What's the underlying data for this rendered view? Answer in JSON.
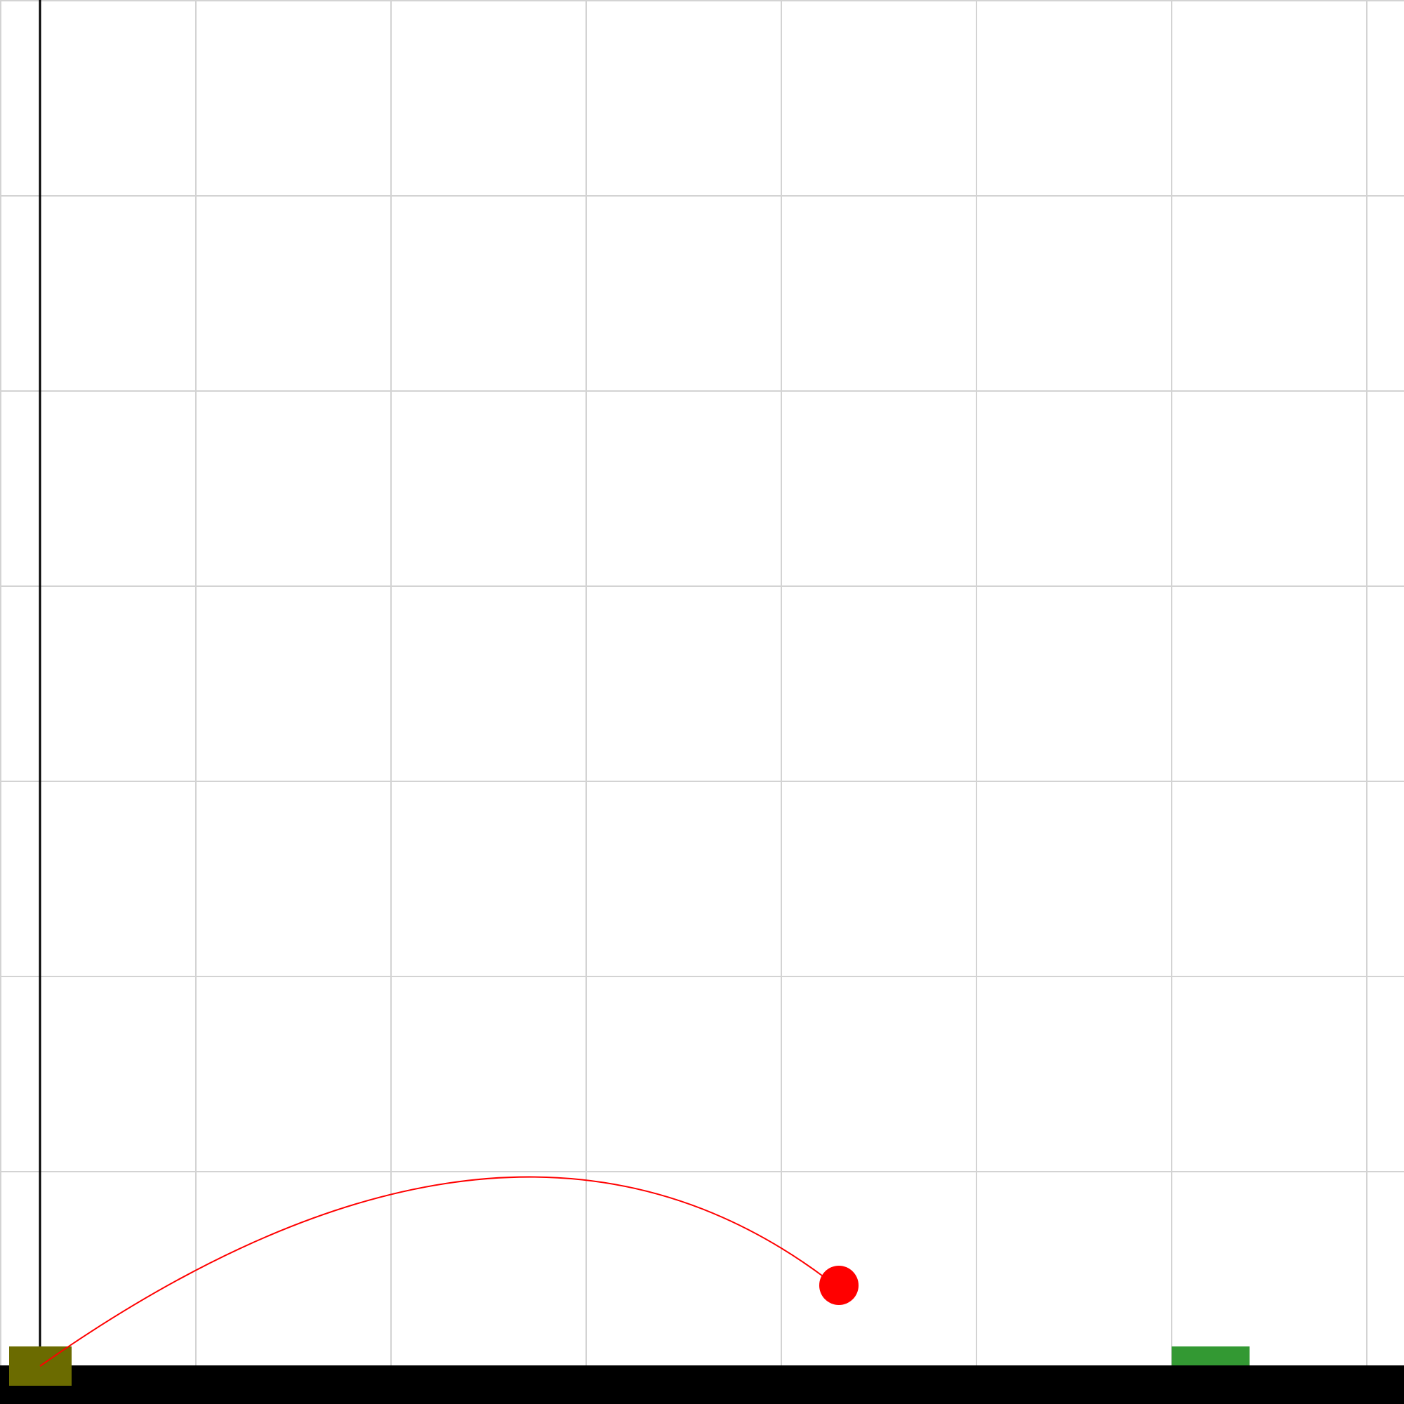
{
  "scene": {
    "colors": {
      "background": "#ffffff",
      "grid": "#d3d3d3",
      "ground": "#000000",
      "wall": "#000000",
      "launcher": "#6b6b00",
      "target": "#339933",
      "projectile": "#ff0000",
      "trajectory": "#ff0000"
    },
    "icons": {
      "launcher": "cannon-block-icon",
      "target": "target-pad-icon",
      "projectile": "ball-icon"
    }
  }
}
